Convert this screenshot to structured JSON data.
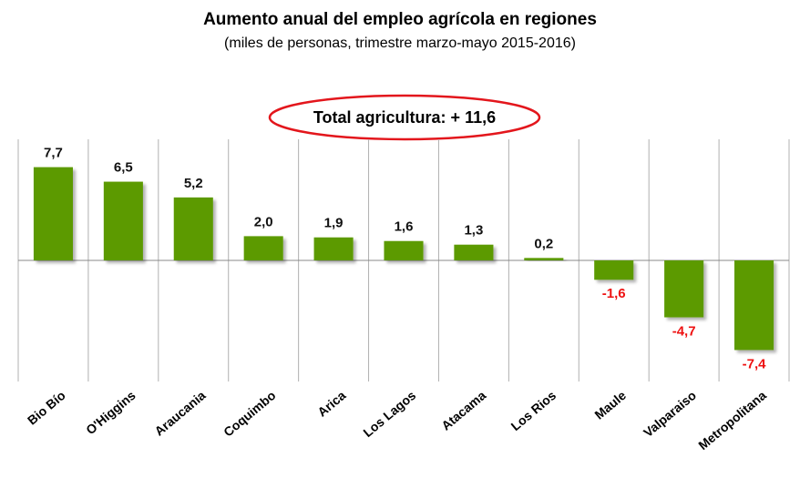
{
  "chart_data": {
    "type": "bar",
    "title": "Aumento anual del empleo agrícola en regiones",
    "subtitle": "(miles de personas, trimestre marzo-mayo 2015-2016)",
    "annotation": "Total agricultura:  + 11,6",
    "categories": [
      "Bio Bío",
      "O'Higgins",
      "Araucania",
      "Coquimbo",
      "Arica",
      "Los Lagos",
      "Atacama",
      "Los Rios",
      "Maule",
      "Valparaiso",
      "Metropolitana"
    ],
    "values": [
      7.7,
      6.5,
      5.2,
      2.0,
      1.9,
      1.6,
      1.3,
      0.2,
      -1.6,
      -4.7,
      -7.4
    ],
    "value_labels": [
      "7,7",
      "6,5",
      "5,2",
      "2,0",
      "1,9",
      "1,6",
      "1,3",
      "0,2",
      "-1,6",
      "-4,7",
      "-7,4"
    ],
    "color": "#5c9a06",
    "negative_label_color": "#ee1111",
    "ylim": [
      -10,
      10
    ]
  }
}
